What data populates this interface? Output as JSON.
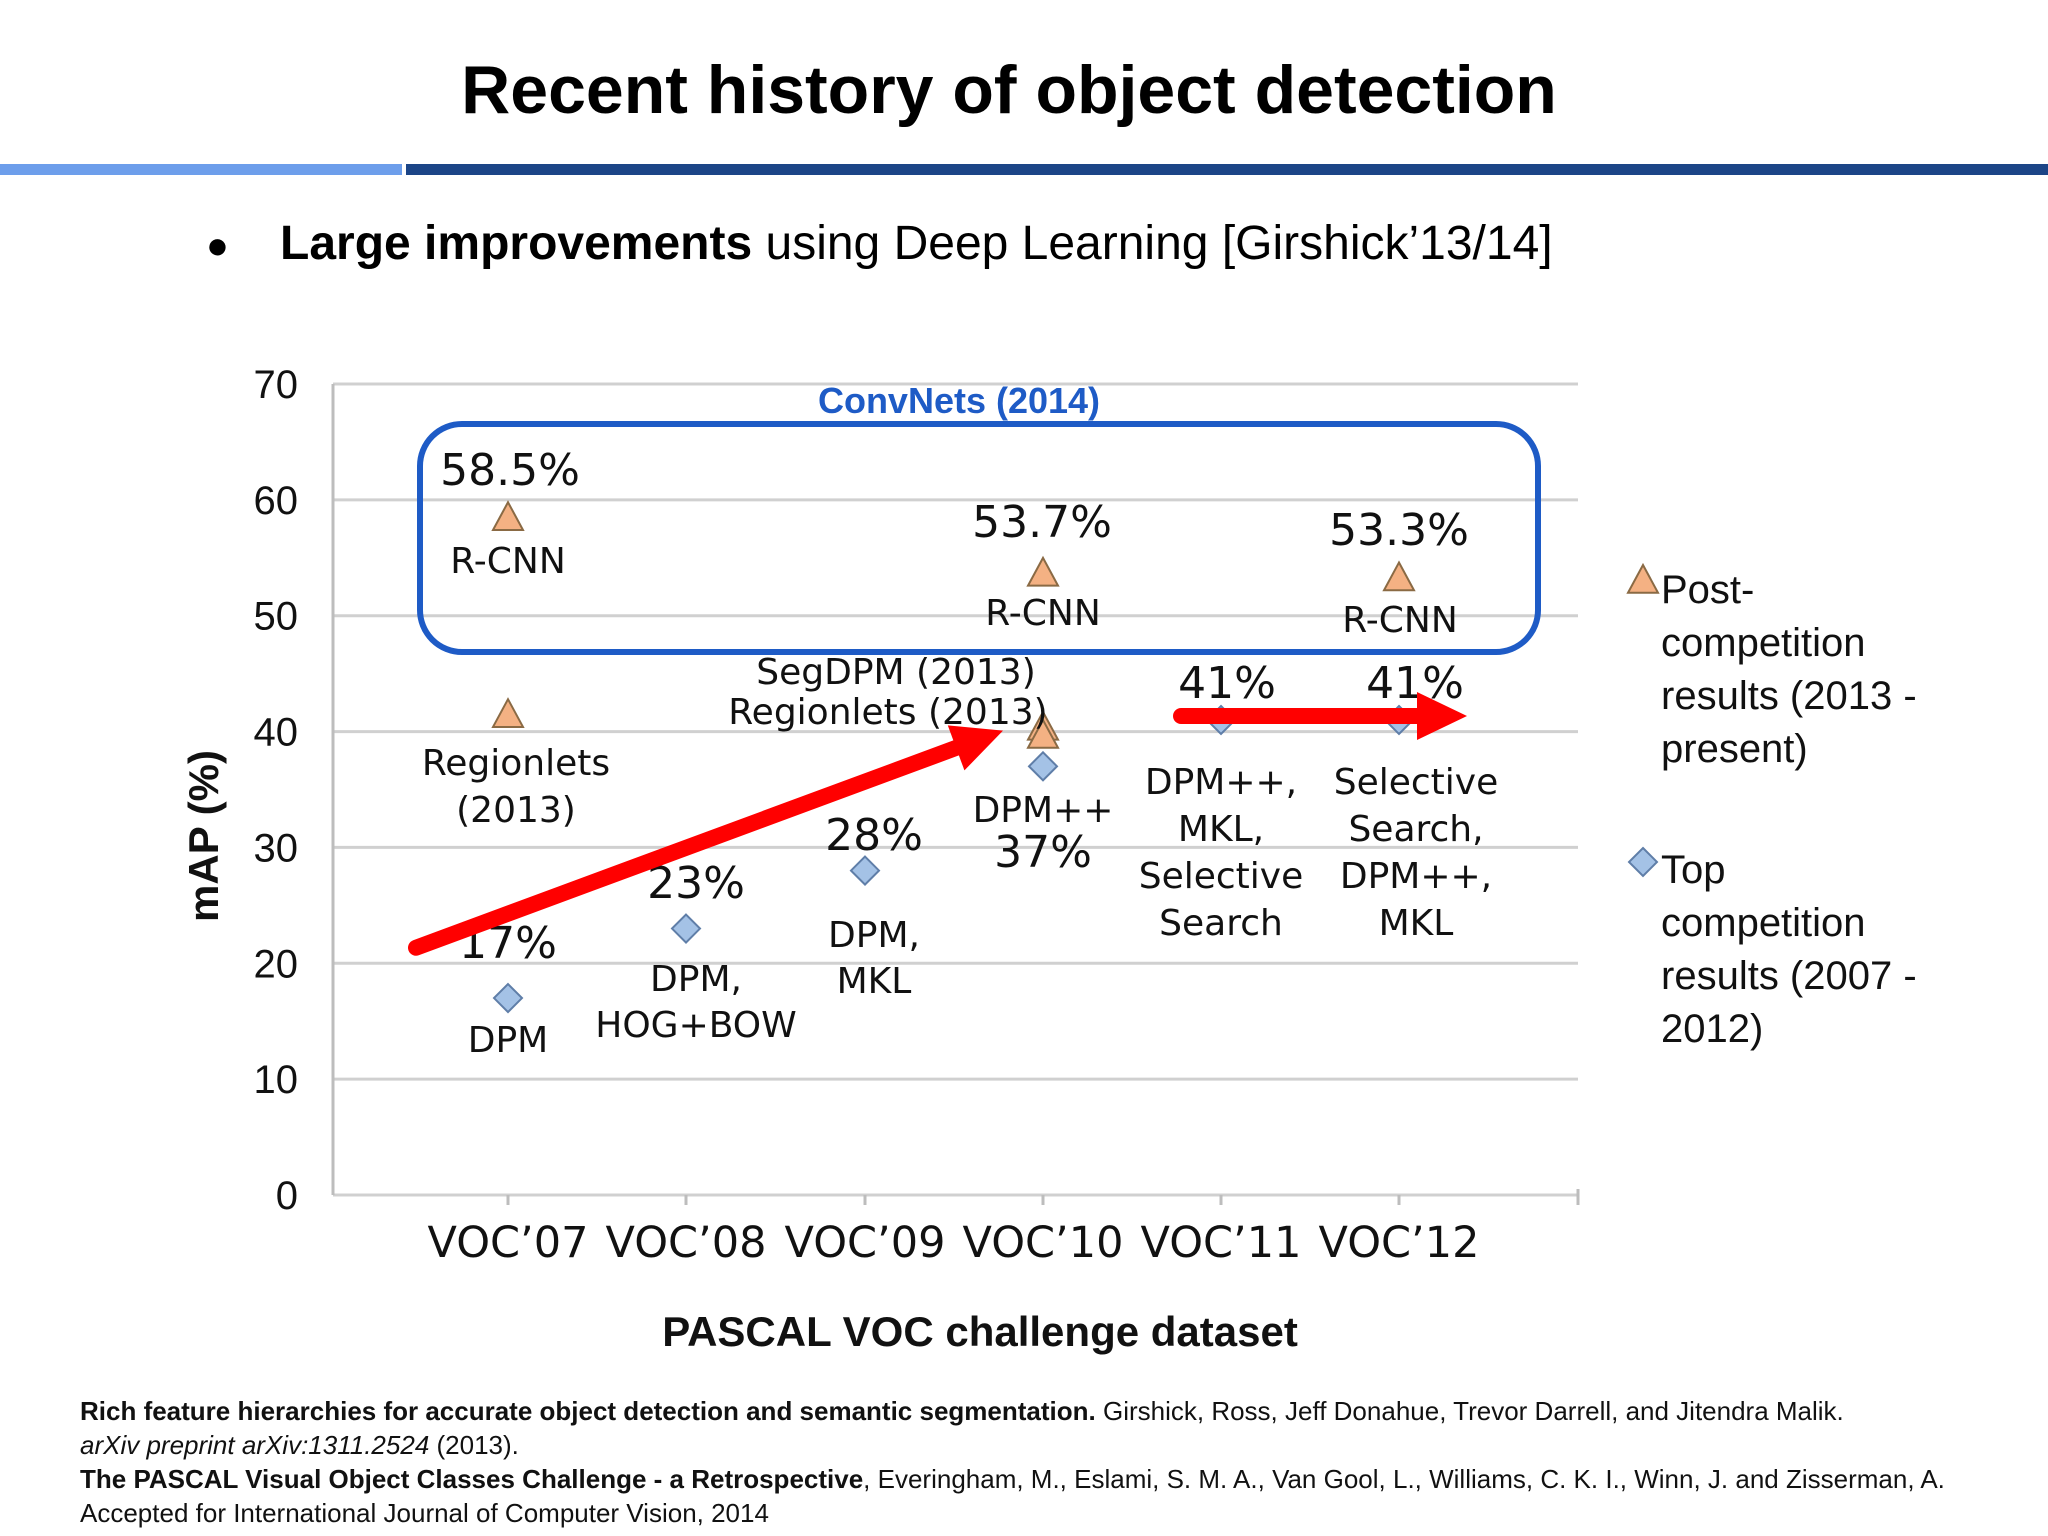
{
  "slide": {
    "title": "Recent history of object detection",
    "bullet": {
      "symbol": "●",
      "bold": "Large improvements",
      "rest": " using Deep Learning [Girshick’13/14]"
    }
  },
  "chart_data": {
    "type": "scatter",
    "title": "",
    "xlabel": "PASCAL VOC challenge dataset",
    "ylabel": "mAP  (%)",
    "categories": [
      "VOC’07",
      "VOC’08",
      "VOC’09",
      "VOC’10",
      "VOC’11",
      "VOC’12"
    ],
    "ylim": [
      0,
      70
    ],
    "yticks": [
      0,
      10,
      20,
      30,
      40,
      50,
      60,
      70
    ],
    "grid": true,
    "legend_position": "right",
    "series": [
      {
        "name": "Post-competition results (2013 - present)",
        "legend_lines": [
          "Post-",
          "competition",
          "results (2013 -",
          "present)"
        ],
        "marker": "triangle",
        "color": "#f4b183",
        "points": [
          {
            "x": "VOC’07",
            "y": 58.5
          },
          {
            "x": "VOC’07",
            "y": 41.5
          },
          {
            "x": "VOC’10",
            "y": 53.7
          },
          {
            "x": "VOC’10",
            "y": 40.4
          },
          {
            "x": "VOC’10",
            "y": 39.7
          },
          {
            "x": "VOC’12",
            "y": 53.3
          }
        ]
      },
      {
        "name": "Top competition results (2007 - 2012)",
        "legend_lines": [
          "Top",
          "competition",
          "results (2007 -",
          "2012)"
        ],
        "marker": "diamond",
        "color": "#a4c2e6",
        "points": [
          {
            "x": "VOC’07",
            "y": 17
          },
          {
            "x": "VOC’08",
            "y": 23
          },
          {
            "x": "VOC’09",
            "y": 28
          },
          {
            "x": "VOC’10",
            "y": 37
          },
          {
            "x": "VOC’11",
            "y": 41
          },
          {
            "x": "VOC’12",
            "y": 41
          }
        ]
      }
    ],
    "highlight_box_label": "ConvNets (2014)",
    "annotations": [
      {
        "text": "58.5%",
        "size": "large"
      },
      {
        "text": "R-CNN",
        "size": "small"
      },
      {
        "text": "53.7%",
        "size": "large"
      },
      {
        "text": "R-CNN",
        "size": "small"
      },
      {
        "text": "53.3%",
        "size": "large"
      },
      {
        "text": "R-CNN",
        "size": "small"
      },
      {
        "text": "Regionlets",
        "size": "small"
      },
      {
        "text": "(2013)",
        "size": "small"
      },
      {
        "text": "SegDPM (2013)",
        "size": "small"
      },
      {
        "text": "Regionlets (2013)",
        "size": "small"
      },
      {
        "text": "17%",
        "size": "large"
      },
      {
        "text": "DPM",
        "size": "small"
      },
      {
        "text": "23%",
        "size": "large"
      },
      {
        "text": "DPM,",
        "size": "small"
      },
      {
        "text": "HOG+BOW",
        "size": "small"
      },
      {
        "text": "28%",
        "size": "large"
      },
      {
        "text": "DPM,",
        "size": "small"
      },
      {
        "text": "MKL",
        "size": "small"
      },
      {
        "text": "DPM++",
        "size": "small"
      },
      {
        "text": "37%",
        "size": "large"
      },
      {
        "text": "41%",
        "size": "large"
      },
      {
        "text": "DPM++,",
        "size": "small"
      },
      {
        "text": "MKL,",
        "size": "small"
      },
      {
        "text": "Selective",
        "size": "small"
      },
      {
        "text": "Search",
        "size": "small"
      },
      {
        "text": "41%",
        "size": "large"
      },
      {
        "text": "Selective",
        "size": "small"
      },
      {
        "text": "Search,",
        "size": "small"
      },
      {
        "text": "DPM++,",
        "size": "small"
      },
      {
        "text": "MKL",
        "size": "small"
      }
    ],
    "trend_arrows": [
      {
        "from": {
          "x": "VOC’07",
          "y": 21
        },
        "to": {
          "x": "VOC’10",
          "y": 40
        }
      },
      {
        "from": {
          "x": "VOC’11",
          "y": 41
        },
        "to": {
          "x": "VOC’12",
          "y": 41
        }
      }
    ]
  },
  "colors": {
    "title_rule_light": "#6d9eeb",
    "title_rule_dark": "#1c4587",
    "box": "#1e5bc6",
    "arrow": "#ff0000"
  },
  "citations": [
    {
      "bold": "Rich feature hierarchies for accurate object detection and semantic segmentation.",
      "text": " Girshick, Ross, Jeff Donahue, Trevor Darrell, and Jitendra Malik.",
      "italic": "arXiv preprint arXiv:1311.2524",
      "text2": " (2013)."
    },
    {
      "bold": "The PASCAL Visual Object Classes Challenge - a Retrospective",
      "text": ", Everingham, M., Eslami, S. M. A., Van Gool, L., Williams, C. K. I., Winn, J. and Zisserman, A. Accepted for International Journal of Computer Vision, 2014"
    }
  ]
}
